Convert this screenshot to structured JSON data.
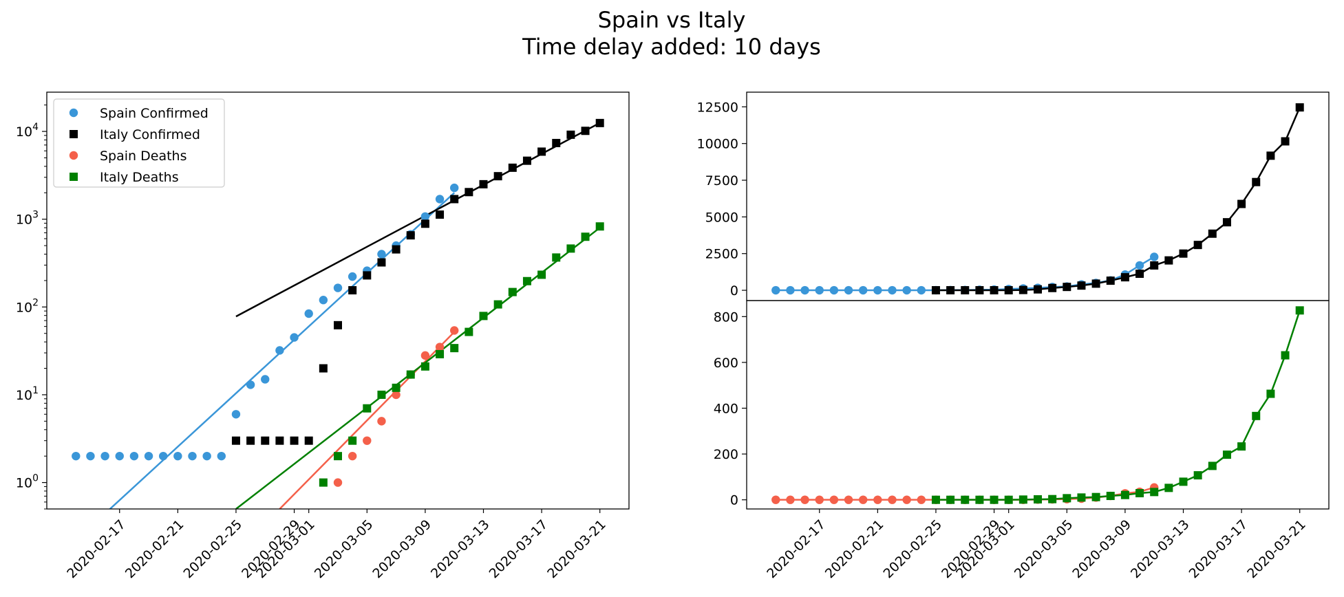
{
  "title_line1": "Spain vs Italy",
  "title_line2": "Time delay added: 10 days",
  "colors": {
    "spain_confirmed": "#3a96d8",
    "italy_confirmed": "#000000",
    "spain_deaths": "#f4604a",
    "italy_deaths": "#008000"
  },
  "chart_data": [
    {
      "type": "scatter",
      "yscale": "log",
      "ylim": [
        0.5,
        28000
      ],
      "xlim": [
        "2020-02-12",
        "2020-03-23"
      ],
      "x_ticks": [
        "2020-02-17",
        "2020-02-21",
        "2020-02-25",
        "2020-02-29",
        "2020-03-01",
        "2020-03-05",
        "2020-03-09",
        "2020-03-13",
        "2020-03-17",
        "2020-03-21"
      ],
      "y_ticks": [
        "10^0",
        "10^1",
        "10^2",
        "10^3",
        "10^4"
      ],
      "legend_position": "upper-left",
      "series": [
        {
          "name": "Spain Confirmed",
          "marker": "circle",
          "x": [
            "2020-02-14",
            "2020-02-15",
            "2020-02-16",
            "2020-02-17",
            "2020-02-18",
            "2020-02-19",
            "2020-02-20",
            "2020-02-21",
            "2020-02-22",
            "2020-02-23",
            "2020-02-24",
            "2020-02-25",
            "2020-02-26",
            "2020-02-27",
            "2020-02-28",
            "2020-02-29",
            "2020-03-01",
            "2020-03-02",
            "2020-03-03",
            "2020-03-04",
            "2020-03-05",
            "2020-03-06",
            "2020-03-07",
            "2020-03-08",
            "2020-03-09",
            "2020-03-10",
            "2020-03-11",
            "2020-03-12"
          ],
          "values": [
            2,
            2,
            2,
            2,
            2,
            2,
            2,
            2,
            2,
            2,
            2,
            6,
            13,
            15,
            32,
            45,
            84,
            120,
            165,
            222,
            259,
            400,
            500,
            673,
            1073,
            1695,
            2277,
            null
          ]
        },
        {
          "name": "Italy Confirmed",
          "marker": "square",
          "x": [
            "2020-02-25",
            "2020-02-26",
            "2020-02-27",
            "2020-02-28",
            "2020-02-29",
            "2020-03-01",
            "2020-03-02",
            "2020-03-03",
            "2020-03-04",
            "2020-03-05",
            "2020-03-06",
            "2020-03-07",
            "2020-03-08",
            "2020-03-09",
            "2020-03-10",
            "2020-03-11",
            "2020-03-12",
            "2020-03-13",
            "2020-03-14",
            "2020-03-15",
            "2020-03-16",
            "2020-03-17",
            "2020-03-18",
            "2020-03-19",
            "2020-03-20",
            "2020-03-21"
          ],
          "values": [
            3,
            3,
            3,
            3,
            3,
            3,
            20,
            62,
            155,
            229,
            322,
            453,
            655,
            888,
            1128,
            1694,
            2036,
            2502,
            3089,
            3858,
            4636,
            5883,
            7375,
            9172,
            10149,
            12462
          ]
        },
        {
          "name": "Spain Deaths",
          "marker": "circle",
          "x": [
            "2020-03-03",
            "2020-03-04",
            "2020-03-05",
            "2020-03-06",
            "2020-03-07",
            "2020-03-08",
            "2020-03-09",
            "2020-03-10",
            "2020-03-11"
          ],
          "values": [
            1,
            2,
            3,
            5,
            10,
            17,
            28,
            35,
            54
          ]
        },
        {
          "name": "Italy Deaths",
          "marker": "square",
          "x": [
            "2020-03-02",
            "2020-03-03",
            "2020-03-04",
            "2020-03-05",
            "2020-03-06",
            "2020-03-07",
            "2020-03-08",
            "2020-03-09",
            "2020-03-10",
            "2020-03-11",
            "2020-03-12",
            "2020-03-13",
            "2020-03-14",
            "2020-03-15",
            "2020-03-16",
            "2020-03-17",
            "2020-03-18",
            "2020-03-19",
            "2020-03-20",
            "2020-03-21"
          ],
          "values": [
            1,
            2,
            3,
            7,
            10,
            12,
            17,
            21,
            29,
            34,
            52,
            79,
            107,
            148,
            197,
            233,
            366,
            463,
            631,
            827
          ]
        }
      ],
      "fit_lines": [
        {
          "series": "Spain Confirmed",
          "x": [
            "2020-02-14",
            "2020-03-11"
          ],
          "values": [
            0.22,
            2000
          ]
        },
        {
          "series": "Italy Confirmed",
          "x": [
            "2020-02-25",
            "2020-03-21"
          ],
          "values": [
            78,
            12500
          ]
        },
        {
          "series": "Spain Deaths",
          "x": [
            "2020-02-28",
            "2020-03-11"
          ],
          "values": [
            0.5,
            52
          ]
        },
        {
          "series": "Italy Deaths",
          "x": [
            "2020-02-25",
            "2020-03-21"
          ],
          "values": [
            0.5,
            800
          ]
        }
      ]
    },
    {
      "type": "line",
      "yscale": "linear",
      "ylim": [
        -700,
        13500
      ],
      "xlim": [
        "2020-02-12",
        "2020-03-23"
      ],
      "y_ticks": [
        0,
        2500,
        5000,
        7500,
        10000,
        12500
      ],
      "series": [
        {
          "name": "Spain Confirmed",
          "marker": "circle",
          "x": [
            "2020-02-14",
            "2020-02-15",
            "2020-02-16",
            "2020-02-17",
            "2020-02-18",
            "2020-02-19",
            "2020-02-20",
            "2020-02-21",
            "2020-02-22",
            "2020-02-23",
            "2020-02-24",
            "2020-02-25",
            "2020-02-26",
            "2020-02-27",
            "2020-02-28",
            "2020-02-29",
            "2020-03-01",
            "2020-03-02",
            "2020-03-03",
            "2020-03-04",
            "2020-03-05",
            "2020-03-06",
            "2020-03-07",
            "2020-03-08",
            "2020-03-09",
            "2020-03-10",
            "2020-03-11"
          ],
          "values": [
            2,
            2,
            2,
            2,
            2,
            2,
            2,
            2,
            2,
            2,
            2,
            6,
            13,
            15,
            32,
            45,
            84,
            120,
            165,
            222,
            259,
            400,
            500,
            673,
            1073,
            1695,
            2277
          ]
        },
        {
          "name": "Italy Confirmed",
          "marker": "square",
          "x": [
            "2020-02-25",
            "2020-02-26",
            "2020-02-27",
            "2020-02-28",
            "2020-02-29",
            "2020-03-01",
            "2020-03-02",
            "2020-03-03",
            "2020-03-04",
            "2020-03-05",
            "2020-03-06",
            "2020-03-07",
            "2020-03-08",
            "2020-03-09",
            "2020-03-10",
            "2020-03-11",
            "2020-03-12",
            "2020-03-13",
            "2020-03-14",
            "2020-03-15",
            "2020-03-16",
            "2020-03-17",
            "2020-03-18",
            "2020-03-19",
            "2020-03-20",
            "2020-03-21"
          ],
          "values": [
            3,
            3,
            3,
            3,
            3,
            3,
            20,
            62,
            155,
            229,
            322,
            453,
            655,
            888,
            1128,
            1694,
            2036,
            2502,
            3089,
            3858,
            4636,
            5883,
            7375,
            9172,
            10149,
            12462
          ]
        }
      ]
    },
    {
      "type": "line",
      "yscale": "linear",
      "ylim": [
        -40,
        870
      ],
      "xlim": [
        "2020-02-12",
        "2020-03-23"
      ],
      "x_ticks": [
        "2020-02-17",
        "2020-02-21",
        "2020-02-25",
        "2020-02-29",
        "2020-03-01",
        "2020-03-05",
        "2020-03-09",
        "2020-03-13",
        "2020-03-17",
        "2020-03-21"
      ],
      "y_ticks": [
        0,
        200,
        400,
        600,
        800
      ],
      "series": [
        {
          "name": "Spain Deaths",
          "marker": "circle",
          "x": [
            "2020-02-14",
            "2020-02-15",
            "2020-02-16",
            "2020-02-17",
            "2020-02-18",
            "2020-02-19",
            "2020-02-20",
            "2020-02-21",
            "2020-02-22",
            "2020-02-23",
            "2020-02-24",
            "2020-02-25",
            "2020-02-26",
            "2020-02-27",
            "2020-02-28",
            "2020-02-29",
            "2020-03-01",
            "2020-03-02",
            "2020-03-03",
            "2020-03-04",
            "2020-03-05",
            "2020-03-06",
            "2020-03-07",
            "2020-03-08",
            "2020-03-09",
            "2020-03-10",
            "2020-03-11"
          ],
          "values": [
            0,
            0,
            0,
            0,
            0,
            0,
            0,
            0,
            0,
            0,
            0,
            0,
            0,
            0,
            0,
            0,
            0,
            0,
            1,
            2,
            3,
            5,
            10,
            17,
            28,
            35,
            54
          ]
        },
        {
          "name": "Italy Deaths",
          "marker": "square",
          "x": [
            "2020-02-25",
            "2020-02-26",
            "2020-02-27",
            "2020-02-28",
            "2020-02-29",
            "2020-03-01",
            "2020-03-02",
            "2020-03-03",
            "2020-03-04",
            "2020-03-05",
            "2020-03-06",
            "2020-03-07",
            "2020-03-08",
            "2020-03-09",
            "2020-03-10",
            "2020-03-11",
            "2020-03-12",
            "2020-03-13",
            "2020-03-14",
            "2020-03-15",
            "2020-03-16",
            "2020-03-17",
            "2020-03-18",
            "2020-03-19",
            "2020-03-20",
            "2020-03-21"
          ],
          "values": [
            0,
            0,
            0,
            0,
            0,
            0,
            1,
            2,
            3,
            7,
            10,
            12,
            17,
            21,
            29,
            34,
            52,
            79,
            107,
            148,
            197,
            233,
            366,
            463,
            631,
            827
          ]
        }
      ]
    }
  ]
}
